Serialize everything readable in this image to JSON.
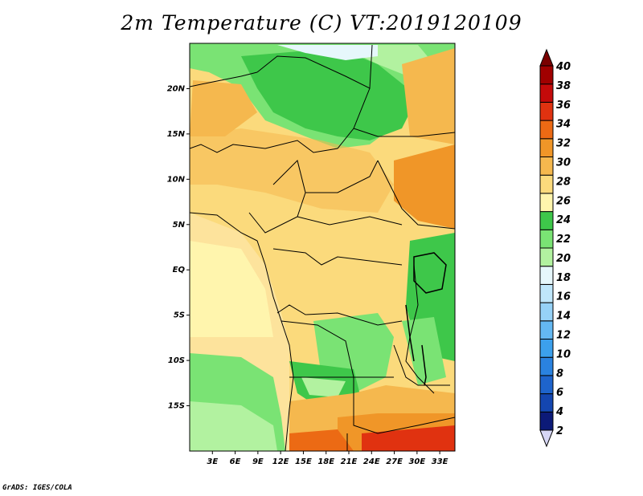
{
  "title": "2m Temperature (C) VT:2019120109",
  "credit": "GrADS: IGES/COLA",
  "map": {
    "lat_labels": [
      "20N",
      "15N",
      "10N",
      "5N",
      "EQ",
      "5S",
      "10S",
      "15S"
    ],
    "lon_labels": [
      "3E",
      "6E",
      "9E",
      "12E",
      "15E",
      "18E",
      "21E",
      "24E",
      "27E",
      "30E",
      "33E"
    ],
    "lat_values": [
      20,
      15,
      10,
      5,
      0,
      -5,
      -10,
      -15
    ],
    "lon_values": [
      3,
      6,
      9,
      12,
      15,
      18,
      21,
      24,
      27,
      30,
      33
    ],
    "lon_range": [
      0,
      35
    ],
    "lat_range": [
      -20,
      25
    ],
    "land_color": "#fbda7c",
    "ocean_color": "#fde39c"
  },
  "colorbar": {
    "levels": [
      "2",
      "4",
      "6",
      "8",
      "10",
      "12",
      "14",
      "16",
      "18",
      "20",
      "22",
      "24",
      "26",
      "28",
      "30",
      "32",
      "34",
      "36",
      "38",
      "40"
    ],
    "colors": [
      "#d6d6f5",
      "#0c1a78",
      "#1446b0",
      "#1e64cc",
      "#2a82e0",
      "#3ca0ec",
      "#64b8f2",
      "#96d2f7",
      "#bfe6fa",
      "#e6f7fb",
      "#b2f2a0",
      "#7ae374",
      "#3ec74a",
      "#fff5ad",
      "#fbda7c",
      "#f5b84e",
      "#f09628",
      "#ec6a14",
      "#e03210",
      "#c40a0a",
      "#a00000",
      "#7a0000"
    ]
  }
}
